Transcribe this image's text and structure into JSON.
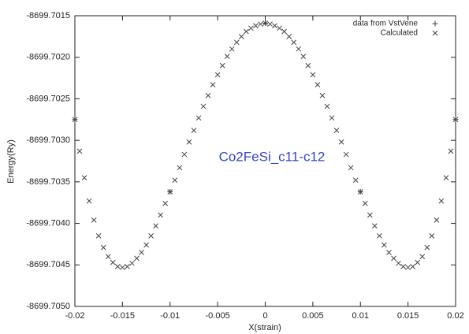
{
  "chart_data": {
    "type": "scatter",
    "xlabel": "X(strain)",
    "ylabel": "Energy(Ry)",
    "annotation": "Co2FeSi_c11-c12",
    "annotation_color": "#3344cc",
    "legend": "upper right",
    "xlim": [
      -0.02,
      0.02
    ],
    "xticks": [
      -0.02,
      -0.015,
      -0.01,
      -0.005,
      0,
      0.005,
      0.01,
      0.015,
      0.02
    ],
    "ylim": [
      -8699.705,
      -8699.7015
    ],
    "yticks": [
      {
        "value": -8699.705,
        "label": "-8699.7050"
      },
      -8699.7045,
      {
        "value": -8699.704,
        "label": "-8699.7040"
      },
      -8699.7035,
      {
        "value": -8699.703,
        "label": "-8699.7030"
      },
      -8699.7025,
      {
        "value": -8699.702,
        "label": "-8699.7020"
      },
      -8699.7015
    ],
    "series": [
      {
        "name": "data from VstVene",
        "marker": "+",
        "color": "#444444",
        "x": [
          -0.02,
          -0.01,
          0,
          0.01,
          0.02
        ],
        "values": [
          -8699.70275,
          -8699.70362,
          -8699.70159,
          -8699.70362,
          -8699.70275
        ]
      },
      {
        "name": "Calculated",
        "marker": "x",
        "color": "#444444",
        "x": [
          -0.02,
          -0.0195,
          -0.019,
          -0.0185,
          -0.018,
          -0.0175,
          -0.017,
          -0.0165,
          -0.016,
          -0.0155,
          -0.015,
          -0.0145,
          -0.014,
          -0.0135,
          -0.013,
          -0.0125,
          -0.012,
          -0.0115,
          -0.011,
          -0.0105,
          -0.01,
          -0.0095,
          -0.009,
          -0.0085,
          -0.008,
          -0.0075,
          -0.007,
          -0.0065,
          -0.006,
          -0.0055,
          -0.005,
          -0.0045,
          -0.004,
          -0.0035,
          -0.003,
          -0.0025,
          -0.002,
          -0.0015,
          -0.001,
          -0.0005,
          0,
          0.0005,
          0.001,
          0.0015,
          0.002,
          0.0025,
          0.003,
          0.0035,
          0.004,
          0.0045,
          0.005,
          0.0055,
          0.006,
          0.0065,
          0.007,
          0.0075,
          0.008,
          0.0085,
          0.009,
          0.0095,
          0.01,
          0.0105,
          0.011,
          0.0115,
          0.012,
          0.0125,
          0.013,
          0.0135,
          0.014,
          0.0145,
          0.015,
          0.0155,
          0.016,
          0.0165,
          0.017,
          0.0175,
          0.018,
          0.0185,
          0.019,
          0.0195,
          0.02
        ],
        "values": [
          -8699.70275,
          -8699.70313,
          -8699.70345,
          -8699.70373,
          -8699.70396,
          -8699.70415,
          -8699.70429,
          -8699.7044,
          -8699.70447,
          -8699.70452,
          -8699.70453,
          -8699.70452,
          -8699.70448,
          -8699.70442,
          -8699.70435,
          -8699.70426,
          -8699.70415,
          -8699.70403,
          -8699.7039,
          -8699.70376,
          -8699.70362,
          -8699.70348,
          -8699.70333,
          -8699.70317,
          -8699.70302,
          -8699.70288,
          -8699.70273,
          -8699.70259,
          -8699.70246,
          -8699.70233,
          -8699.70221,
          -8699.7021,
          -8699.70199,
          -8699.7019,
          -8699.70182,
          -8699.70175,
          -8699.70169,
          -8699.70165,
          -8699.70162,
          -8699.7016,
          -8699.70159,
          -8699.7016,
          -8699.70162,
          -8699.70165,
          -8699.70169,
          -8699.70175,
          -8699.70182,
          -8699.7019,
          -8699.70199,
          -8699.7021,
          -8699.70221,
          -8699.70233,
          -8699.70246,
          -8699.70259,
          -8699.70273,
          -8699.70288,
          -8699.70302,
          -8699.70317,
          -8699.70333,
          -8699.70348,
          -8699.70362,
          -8699.70376,
          -8699.7039,
          -8699.70403,
          -8699.70415,
          -8699.70426,
          -8699.70435,
          -8699.70442,
          -8699.70448,
          -8699.70452,
          -8699.70453,
          -8699.70452,
          -8699.70447,
          -8699.7044,
          -8699.70429,
          -8699.70415,
          -8699.70396,
          -8699.70373,
          -8699.70345,
          -8699.70313,
          -8699.70275
        ]
      }
    ]
  }
}
